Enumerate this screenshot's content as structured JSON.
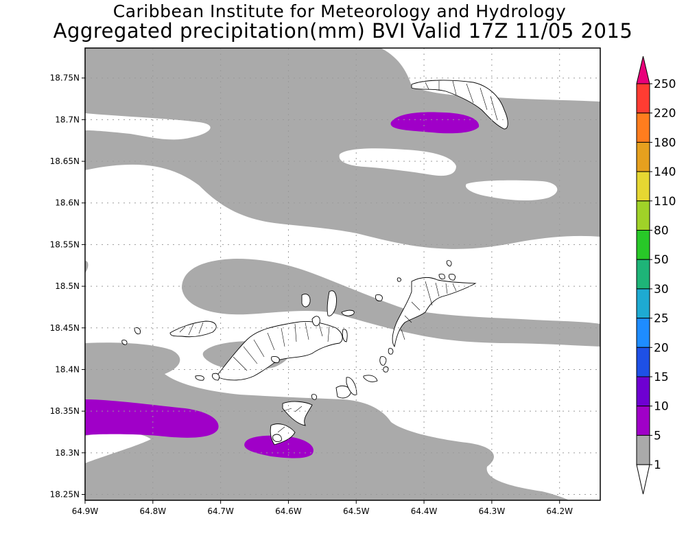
{
  "titles": {
    "line1": "Caribbean Institute for Meteorology and Hydrology",
    "line2": "Aggregated precipitation(mm) BVI Valid 17Z 11/05 2015"
  },
  "axes": {
    "lon_labels": [
      "64.9W",
      "64.8W",
      "64.7W",
      "64.6W",
      "64.5W",
      "64.4W",
      "64.3W",
      "64.2W"
    ],
    "lat_labels": [
      "18.75N",
      "18.7N",
      "18.65N",
      "18.6N",
      "18.55N",
      "18.5N",
      "18.45N",
      "18.4N",
      "18.35N",
      "18.3N",
      "18.25N"
    ],
    "lon_range": [
      -64.9,
      -64.14
    ],
    "lat_range": [
      18.243,
      18.786
    ],
    "grid": "dotted"
  },
  "colorbar": {
    "levels": [
      "250",
      "220",
      "180",
      "140",
      "110",
      "80",
      "50",
      "30",
      "25",
      "20",
      "15",
      "10",
      "5",
      "1"
    ],
    "colors": [
      "#e8007a",
      "#ff3c32",
      "#ff7d1e",
      "#e6a01e",
      "#e6d732",
      "#a0d228",
      "#28c828",
      "#1eb478",
      "#1eaad2",
      "#1e8cff",
      "#1e50e6",
      "#6e00d2",
      "#a000c8",
      "#aaaaaa"
    ]
  },
  "fields": {
    "gray": "#aaaaaa",
    "purple": "#a000c8",
    "land_outline": "#000000"
  }
}
